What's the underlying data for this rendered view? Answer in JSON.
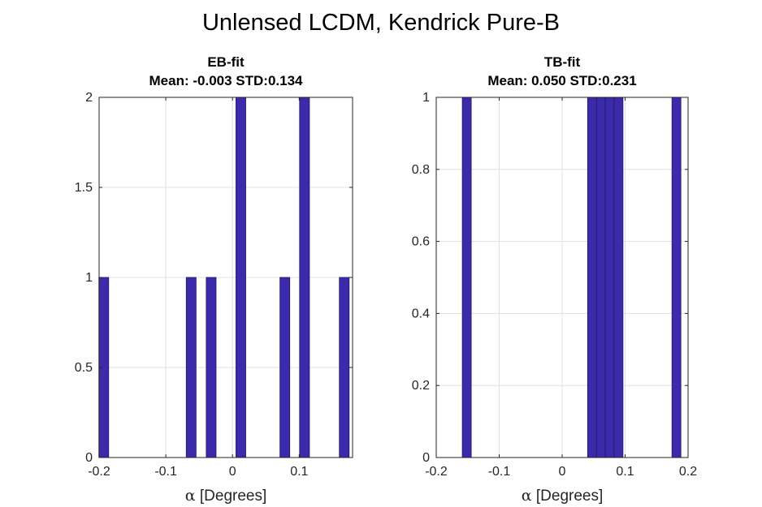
{
  "figure_title": "Unlensed LCDM, Kendrick Pure-B",
  "colors": {
    "bar_fill": "#3b2bab",
    "bar_edge": "#1f1466",
    "grid": "#e0e0e0",
    "axis": "#262626"
  },
  "chart_data": [
    {
      "type": "bar",
      "title_lines": [
        "EB-fit",
        "Mean: -0.003 STD:0.134"
      ],
      "xlabel_symbol": "α",
      "xlabel_text": " [Degrees]",
      "xlim": [
        -0.2,
        0.18
      ],
      "ylim": [
        0,
        2
      ],
      "xticks": [
        -0.2,
        -0.1,
        0,
        0.1
      ],
      "xtick_labels": [
        "-0.2",
        "-0.1",
        "0",
        "0.1"
      ],
      "yticks": [
        0,
        0.5,
        1,
        1.5,
        2
      ],
      "ytick_labels": [
        "0",
        "0.5",
        "1",
        "1.5",
        "2"
      ],
      "grid": true,
      "bin_width": 0.0147,
      "bins": [
        {
          "center": -0.193,
          "count": 1
        },
        {
          "center": -0.062,
          "count": 1
        },
        {
          "center": -0.032,
          "count": 1
        },
        {
          "center": 0.0125,
          "count": 2
        },
        {
          "center": 0.0785,
          "count": 1
        },
        {
          "center": 0.108,
          "count": 2
        },
        {
          "center": 0.1675,
          "count": 1
        }
      ]
    },
    {
      "type": "bar",
      "title_lines": [
        "TB-fit",
        "Mean: 0.050 STD:0.231"
      ],
      "xlabel_symbol": "α",
      "xlabel_text": " [Degrees]",
      "xlim": [
        -0.2,
        0.2
      ],
      "ylim": [
        0,
        1
      ],
      "xticks": [
        -0.2,
        -0.1,
        0,
        0.1,
        0.2
      ],
      "xtick_labels": [
        "-0.2",
        "-0.1",
        "0",
        "0.1",
        "0.2"
      ],
      "yticks": [
        0,
        0.2,
        0.4,
        0.6,
        0.8,
        1
      ],
      "ytick_labels": [
        "0",
        "0.2",
        "0.4",
        "0.6",
        "0.8",
        "1"
      ],
      "grid": true,
      "bin_width": 0.0142,
      "bins": [
        {
          "center": -0.1515,
          "count": 1
        },
        {
          "center": 0.0475,
          "count": 1
        },
        {
          "center": 0.0615,
          "count": 1
        },
        {
          "center": 0.0755,
          "count": 1
        },
        {
          "center": 0.0895,
          "count": 1
        },
        {
          "center": 0.1815,
          "count": 1
        }
      ]
    }
  ]
}
